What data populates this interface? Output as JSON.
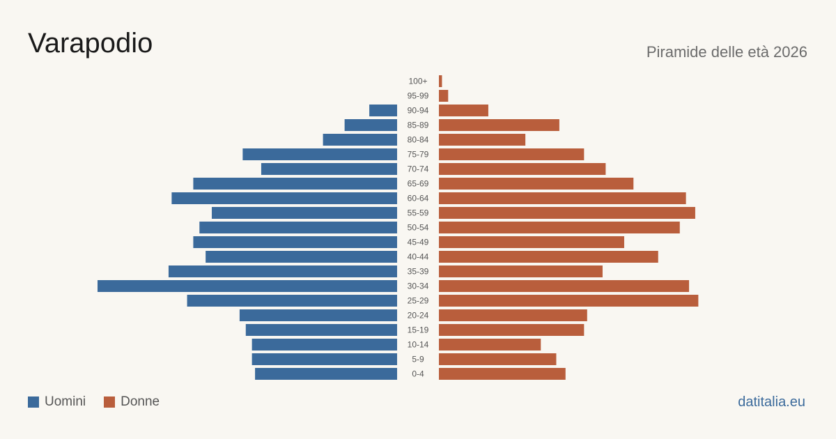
{
  "header": {
    "title": "Varapodio",
    "subtitle": "Piramide delle età 2026"
  },
  "legend": {
    "men_label": "Uomini",
    "women_label": "Donne"
  },
  "footer": {
    "source": "datitalia.eu"
  },
  "colors": {
    "men": "#3b6a9b",
    "women": "#b95e3c",
    "background": "#f9f7f2"
  },
  "chart_data": {
    "type": "bar",
    "orientation": "horizontal-pyramid",
    "title": "Varapodio",
    "subtitle": "Piramide delle età 2026",
    "categories": [
      "100+",
      "95-99",
      "90-94",
      "85-89",
      "80-84",
      "75-79",
      "70-74",
      "65-69",
      "60-64",
      "55-59",
      "50-54",
      "45-49",
      "40-44",
      "35-39",
      "30-34",
      "25-29",
      "20-24",
      "15-19",
      "10-14",
      "5-9",
      "0-4"
    ],
    "series": [
      {
        "name": "Uomini",
        "values": [
          0,
          0,
          9,
          17,
          24,
          50,
          44,
          66,
          73,
          60,
          64,
          66,
          62,
          74,
          97,
          68,
          51,
          49,
          47,
          47,
          46
        ]
      },
      {
        "name": "Donne",
        "values": [
          1,
          3,
          16,
          39,
          28,
          47,
          54,
          63,
          80,
          83,
          78,
          60,
          71,
          53,
          81,
          84,
          48,
          47,
          33,
          38,
          41
        ]
      }
    ],
    "xlim": [
      0,
      97
    ],
    "grid": false,
    "legend_position": "bottom-left"
  }
}
